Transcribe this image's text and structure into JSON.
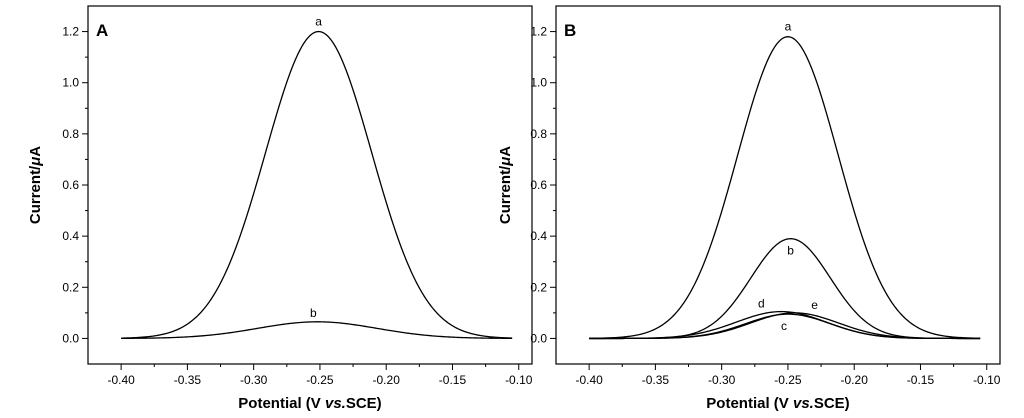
{
  "chart_data": [
    {
      "type": "line",
      "panel": "A",
      "xlabel_parts": [
        "Potential (V ",
        "vs.",
        "SCE)"
      ],
      "ylabel_parts": [
        "Current/",
        "μ",
        "A"
      ],
      "xlim": [
        -0.425,
        -0.09
      ],
      "ylim": [
        -0.1,
        1.3
      ],
      "xticks": [
        -0.4,
        -0.35,
        -0.3,
        -0.25,
        -0.2,
        -0.15,
        -0.1
      ],
      "xtick_labels": [
        "-0.40",
        "-0.35",
        "-0.30",
        "-0.25",
        "-0.20",
        "-0.15",
        "-0.10"
      ],
      "yticks": [
        0.0,
        0.2,
        0.4,
        0.6,
        0.8,
        1.0,
        1.2
      ],
      "ytick_labels": [
        "0.0",
        "0.2",
        "0.4",
        "0.6",
        "0.8",
        "1.0",
        "1.2"
      ],
      "x_range": [
        -0.4,
        -0.105
      ],
      "series": [
        {
          "name": "a",
          "peak_potential": -0.251,
          "peak_current": 1.2,
          "width": 0.04,
          "baseline": 0.0
        },
        {
          "name": "b",
          "peak_potential": -0.252,
          "peak_current": 0.065,
          "width": 0.045,
          "baseline": 0.0
        }
      ]
    },
    {
      "type": "line",
      "panel": "B",
      "xlabel_parts": [
        "Potential (V ",
        "vs.",
        "SCE)"
      ],
      "ylabel_parts": [
        "Current/",
        "μ",
        "A"
      ],
      "xlim": [
        -0.425,
        -0.09
      ],
      "ylim": [
        -0.1,
        1.3
      ],
      "xticks": [
        -0.4,
        -0.35,
        -0.3,
        -0.25,
        -0.2,
        -0.15,
        -0.1
      ],
      "xtick_labels": [
        "-0.40",
        "-0.35",
        "-0.30",
        "-0.25",
        "-0.20",
        "-0.15",
        "-0.10"
      ],
      "yticks": [
        0.0,
        0.2,
        0.4,
        0.6,
        0.8,
        1.0,
        1.2
      ],
      "ytick_labels": [
        "0.0",
        "0.2",
        "0.4",
        "0.6",
        "0.8",
        "1.0",
        "1.2"
      ],
      "x_range": [
        -0.4,
        -0.105
      ],
      "series": [
        {
          "name": "a",
          "peak_potential": -0.25,
          "peak_current": 1.18,
          "width": 0.038,
          "baseline": 0.0
        },
        {
          "name": "b",
          "peak_potential": -0.248,
          "peak_current": 0.39,
          "width": 0.03,
          "baseline": 0.0
        },
        {
          "name": "c",
          "peak_potential": -0.25,
          "peak_current": 0.095,
          "width": 0.032,
          "baseline": 0.0
        },
        {
          "name": "d",
          "peak_potential": -0.255,
          "peak_current": 0.105,
          "width": 0.034,
          "baseline": 0.0
        },
        {
          "name": "e",
          "peak_potential": -0.245,
          "peak_current": 0.1,
          "width": 0.033,
          "baseline": 0.0
        }
      ]
    }
  ]
}
